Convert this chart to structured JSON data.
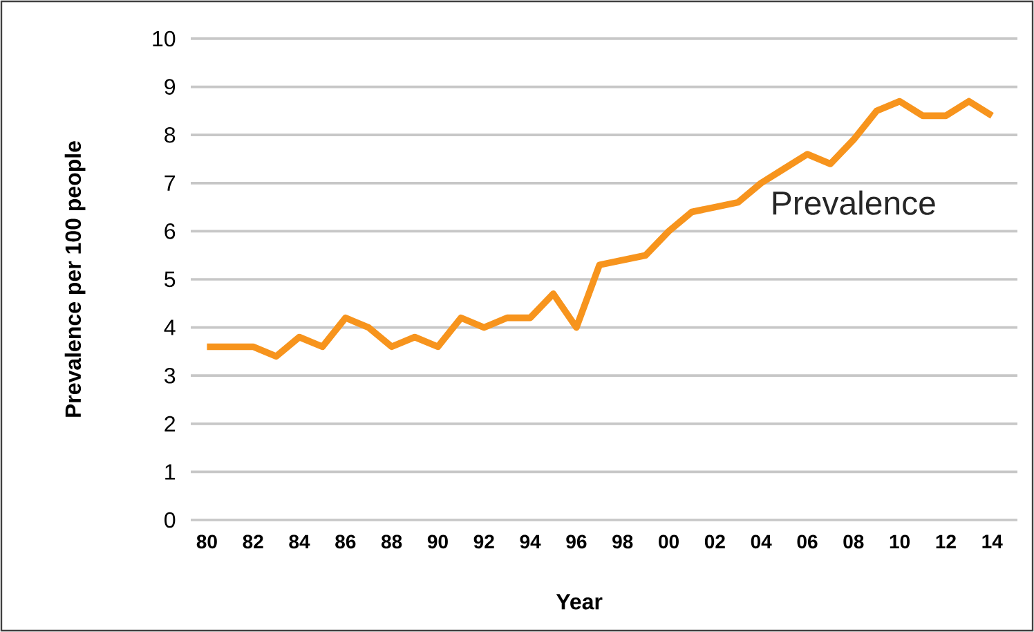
{
  "chart_data": {
    "type": "line",
    "xlabel": "Year",
    "ylabel": "Prevalence per 100 people",
    "x": [
      1980,
      1981,
      1982,
      1983,
      1984,
      1985,
      1986,
      1987,
      1988,
      1989,
      1990,
      1991,
      1992,
      1993,
      1994,
      1995,
      1996,
      1997,
      1998,
      1999,
      2000,
      2001,
      2002,
      2003,
      2004,
      2005,
      2006,
      2007,
      2008,
      2009,
      2010,
      2011,
      2012,
      2013,
      2014
    ],
    "series": [
      {
        "name": "Prevalence",
        "color": "#f7941d",
        "values": [
          3.6,
          3.6,
          3.6,
          3.4,
          3.8,
          3.6,
          4.2,
          4.0,
          3.6,
          3.8,
          3.6,
          4.2,
          4.0,
          4.2,
          4.2,
          4.7,
          4.0,
          5.3,
          5.4,
          5.5,
          6.0,
          6.4,
          6.5,
          6.6,
          7.0,
          7.3,
          7.6,
          7.4,
          7.9,
          8.5,
          8.7,
          8.4,
          8.4,
          8.7,
          8.4
        ]
      }
    ],
    "xlim": [
      1979.3,
      2015.1
    ],
    "ylim": [
      0,
      10
    ],
    "xticks": [
      {
        "value": 1980,
        "label": "80"
      },
      {
        "value": 1982,
        "label": "82"
      },
      {
        "value": 1984,
        "label": "84"
      },
      {
        "value": 1986,
        "label": "86"
      },
      {
        "value": 1988,
        "label": "88"
      },
      {
        "value": 1990,
        "label": "90"
      },
      {
        "value": 1992,
        "label": "92"
      },
      {
        "value": 1994,
        "label": "94"
      },
      {
        "value": 1996,
        "label": "96"
      },
      {
        "value": 1998,
        "label": "98"
      },
      {
        "value": 2000,
        "label": "00"
      },
      {
        "value": 2002,
        "label": "02"
      },
      {
        "value": 2004,
        "label": "04"
      },
      {
        "value": 2006,
        "label": "06"
      },
      {
        "value": 2008,
        "label": "08"
      },
      {
        "value": 2010,
        "label": "10"
      },
      {
        "value": 2012,
        "label": "12"
      },
      {
        "value": 2014,
        "label": "14"
      }
    ],
    "yticks": [
      0,
      1,
      2,
      3,
      4,
      5,
      6,
      7,
      8,
      9,
      10
    ],
    "grid": "y",
    "marker": "none",
    "line_style": "solid"
  }
}
